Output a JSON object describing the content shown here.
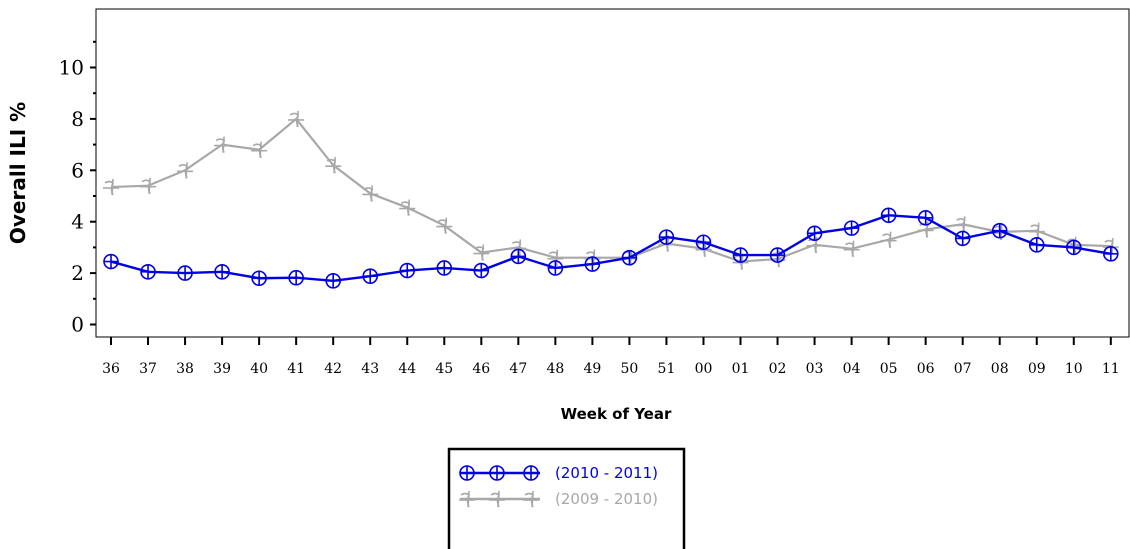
{
  "chart_data": {
    "type": "line",
    "title": "",
    "xlabel": "Week of Year",
    "ylabel": "Overall ILI %",
    "ylim": [
      0,
      11.5
    ],
    "yticks": [
      "0",
      "2",
      "4",
      "6",
      "8",
      "10"
    ],
    "categories": [
      "36",
      "37",
      "38",
      "39",
      "40",
      "41",
      "42",
      "43",
      "44",
      "45",
      "46",
      "47",
      "48",
      "49",
      "50",
      "51",
      "00",
      "01",
      "02",
      "03",
      "04",
      "05",
      "06",
      "07",
      "08",
      "09",
      "10",
      "11"
    ],
    "series": [
      {
        "name": "(2010 - 2011)",
        "color": "#0000e6",
        "marker": "circle-plus-icon",
        "values": [
          2.45,
          2.05,
          2.0,
          2.05,
          1.8,
          1.82,
          1.7,
          1.88,
          2.1,
          2.2,
          2.1,
          2.65,
          2.2,
          2.35,
          2.6,
          3.4,
          3.2,
          2.7,
          2.7,
          3.55,
          3.75,
          4.25,
          4.15,
          3.35,
          3.65,
          3.1,
          3.0,
          2.75
        ]
      },
      {
        "name": "(2009 - 2010)",
        "color": "#a8a8a8",
        "marker": "crossed-hook-icon",
        "values": [
          5.35,
          5.4,
          6.0,
          7.0,
          6.8,
          8.0,
          6.2,
          5.1,
          4.55,
          3.85,
          2.8,
          3.0,
          2.6,
          2.6,
          2.6,
          3.15,
          2.95,
          2.45,
          2.55,
          3.1,
          2.95,
          3.3,
          3.7,
          3.9,
          3.6,
          3.65,
          3.1,
          3.05
        ]
      }
    ],
    "grid": false,
    "legend_position": "bottom-center"
  }
}
